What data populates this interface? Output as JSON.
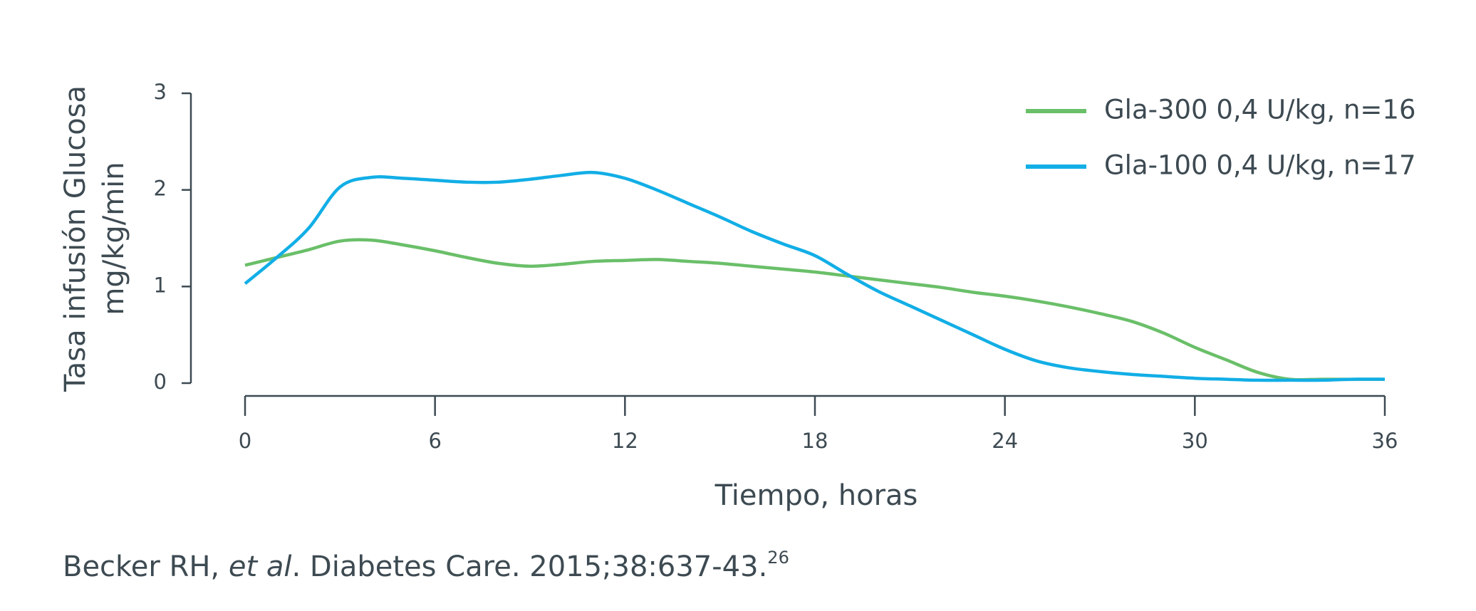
{
  "chart_data": {
    "type": "line",
    "y_label": [
      "Tasa infusión Glucosa",
      "mg/kg/min"
    ],
    "x_label": "Tiempo, horas",
    "source": {
      "authors": "Becker RH, ",
      "etal": "et al",
      "rest": ". Diabetes Care. 2015;38:637-43.",
      "ref": "26"
    },
    "x": [
      0,
      1,
      2,
      3,
      4,
      5,
      6,
      7,
      8,
      9,
      10,
      11,
      12,
      13,
      14,
      15,
      16,
      17,
      18,
      19,
      20,
      21,
      22,
      23,
      24,
      25,
      26,
      27,
      28,
      29,
      30,
      31,
      32,
      33,
      34,
      35,
      36
    ],
    "xlim": [
      0,
      36
    ],
    "xticks": [
      0,
      6,
      12,
      18,
      24,
      30,
      36
    ],
    "ylim": [
      0,
      3
    ],
    "yticks": [
      0,
      1,
      2,
      3
    ],
    "series": [
      {
        "name": "Gla-300 0,4 U/kg, n=16",
        "color": "#6abf69",
        "values": [
          1.22,
          1.3,
          1.38,
          1.47,
          1.48,
          1.43,
          1.37,
          1.3,
          1.24,
          1.21,
          1.23,
          1.26,
          1.27,
          1.28,
          1.26,
          1.24,
          1.21,
          1.18,
          1.15,
          1.11,
          1.07,
          1.03,
          0.99,
          0.94,
          0.9,
          0.85,
          0.79,
          0.72,
          0.64,
          0.52,
          0.37,
          0.24,
          0.11,
          0.04,
          0.04,
          0.04,
          0.04
        ]
      },
      {
        "name": "Gla-100 0,4 U/kg, n=17",
        "color": "#12aee6",
        "values": [
          1.03,
          1.3,
          1.6,
          2.03,
          2.13,
          2.12,
          2.1,
          2.08,
          2.08,
          2.11,
          2.15,
          2.18,
          2.12,
          2.0,
          1.86,
          1.72,
          1.57,
          1.44,
          1.32,
          1.13,
          0.95,
          0.8,
          0.65,
          0.5,
          0.35,
          0.23,
          0.16,
          0.12,
          0.09,
          0.07,
          0.05,
          0.04,
          0.03,
          0.03,
          0.03,
          0.04,
          0.04
        ]
      }
    ]
  }
}
